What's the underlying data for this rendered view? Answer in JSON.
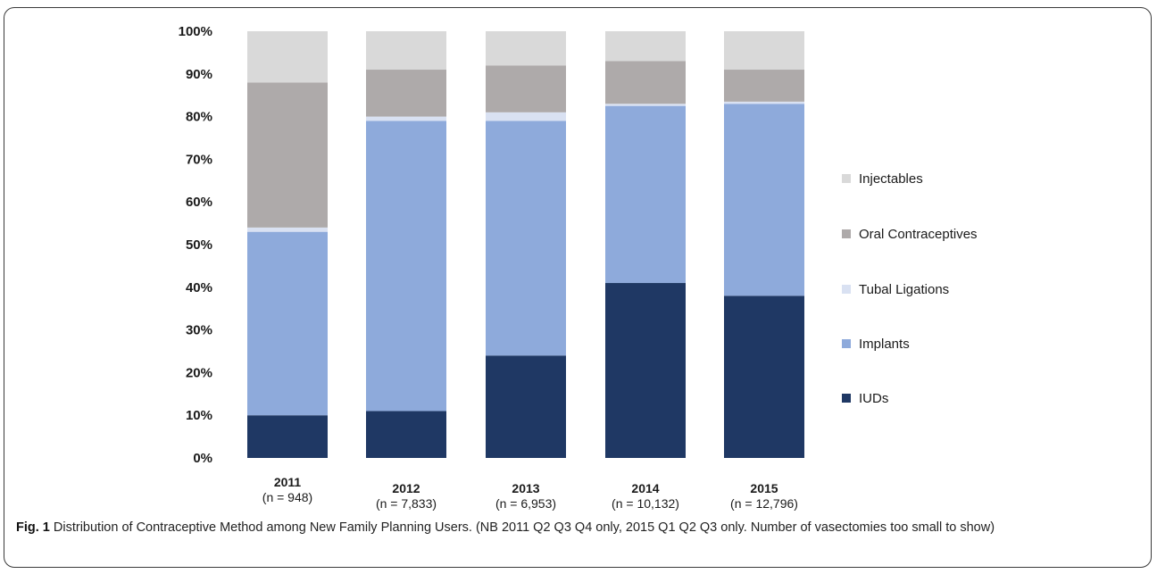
{
  "chart_data": {
    "type": "bar",
    "stacked": true,
    "percent_stacked": true,
    "categories": [
      "2011",
      "2012",
      "2013",
      "2014",
      "2015"
    ],
    "category_sublabels": [
      "(n = 948)",
      "(n = 7,833)",
      "(n = 6,953)",
      "(n = 10,132)",
      "(n = 12,796)"
    ],
    "series": [
      {
        "name": "IUDs",
        "color": "#1f3864",
        "values": [
          10,
          11,
          24,
          41,
          38
        ]
      },
      {
        "name": "Implants",
        "color": "#8eaadb",
        "values": [
          43,
          68,
          55,
          41.5,
          45
        ]
      },
      {
        "name": "Tubal Ligations",
        "color": "#d9e1f2",
        "values": [
          1,
          1,
          2,
          0.5,
          0.5
        ]
      },
      {
        "name": "Oral Contraceptives",
        "color": "#aeaaaa",
        "values": [
          34,
          11,
          11,
          10,
          7.5
        ]
      },
      {
        "name": "Injectables",
        "color": "#d9d9d9",
        "values": [
          12,
          9,
          8,
          7,
          9
        ]
      }
    ],
    "ylim": [
      0,
      100
    ],
    "yticks": [
      "0%",
      "10%",
      "20%",
      "30%",
      "40%",
      "50%",
      "60%",
      "70%",
      "80%",
      "90%",
      "100%"
    ],
    "grid": false,
    "legend_position": "right",
    "legend_order": [
      "Injectables",
      "Oral Contraceptives",
      "Tubal Ligations",
      "Implants",
      "IUDs"
    ]
  },
  "caption": {
    "label": "Fig. 1",
    "text": " Distribution of Contraceptive Method among New Family Planning Users. (NB 2011 Q2 Q3 Q4 only, 2015 Q1 Q2 Q3 only. Number of vasectomies too small to show)"
  }
}
